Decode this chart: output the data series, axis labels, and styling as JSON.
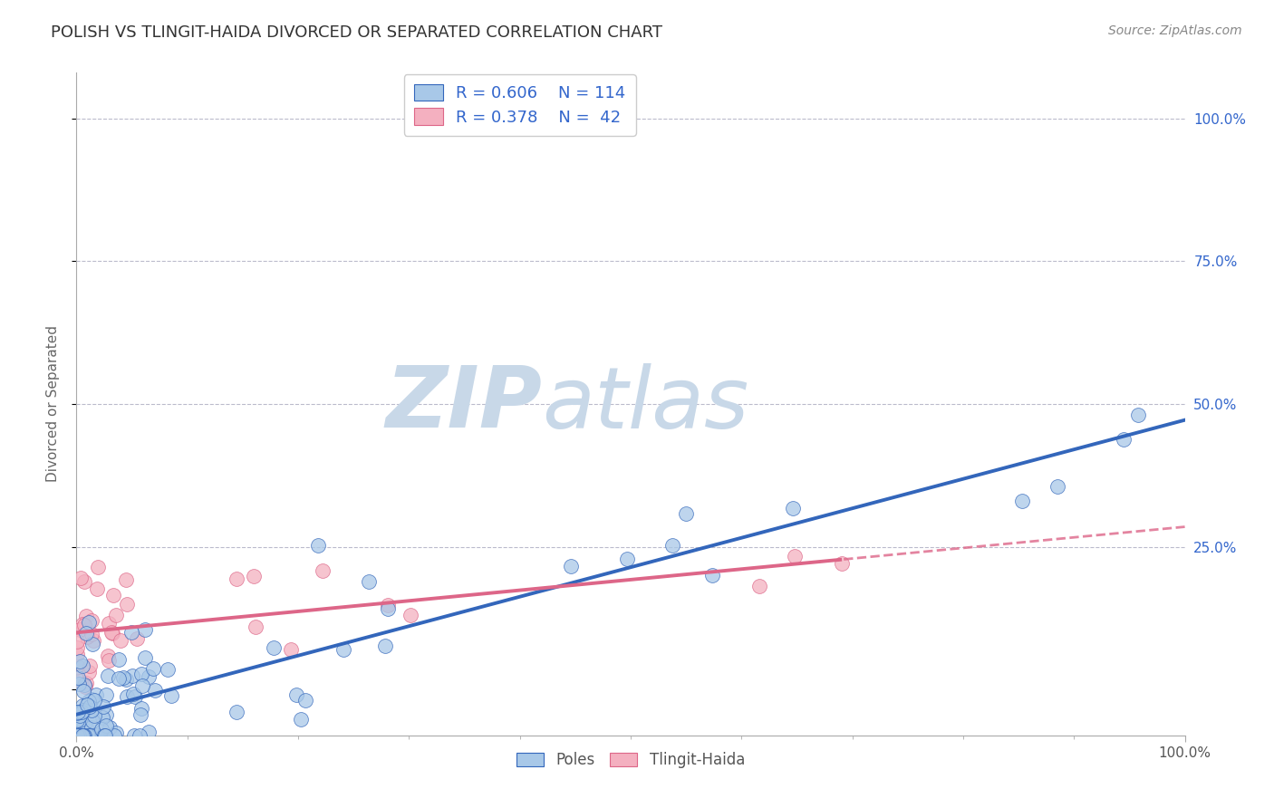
{
  "title": "POLISH VS TLINGIT-HAIDA DIVORCED OR SEPARATED CORRELATION CHART",
  "source": "Source: ZipAtlas.com",
  "ylabel": "Divorced or Separated",
  "xlim": [
    0.0,
    1.0
  ],
  "ylim": [
    -0.08,
    1.08
  ],
  "blue_R": 0.606,
  "blue_N": 114,
  "pink_R": 0.378,
  "pink_N": 42,
  "blue_color": "#A8C8E8",
  "pink_color": "#F4B0C0",
  "blue_line_color": "#3366BB",
  "pink_line_color": "#DD6688",
  "title_color": "#333333",
  "legend_text_color": "#3366CC",
  "watermark_zip_color": "#C8D8E8",
  "watermark_atlas_color": "#C8D8E8",
  "background_color": "#FFFFFF",
  "grid_color": "#BBBBCC",
  "blue_seed": 42,
  "pink_seed": 7,
  "blue_intercept": -0.06,
  "blue_slope": 0.56,
  "pink_intercept": 0.1,
  "pink_slope": 0.15
}
